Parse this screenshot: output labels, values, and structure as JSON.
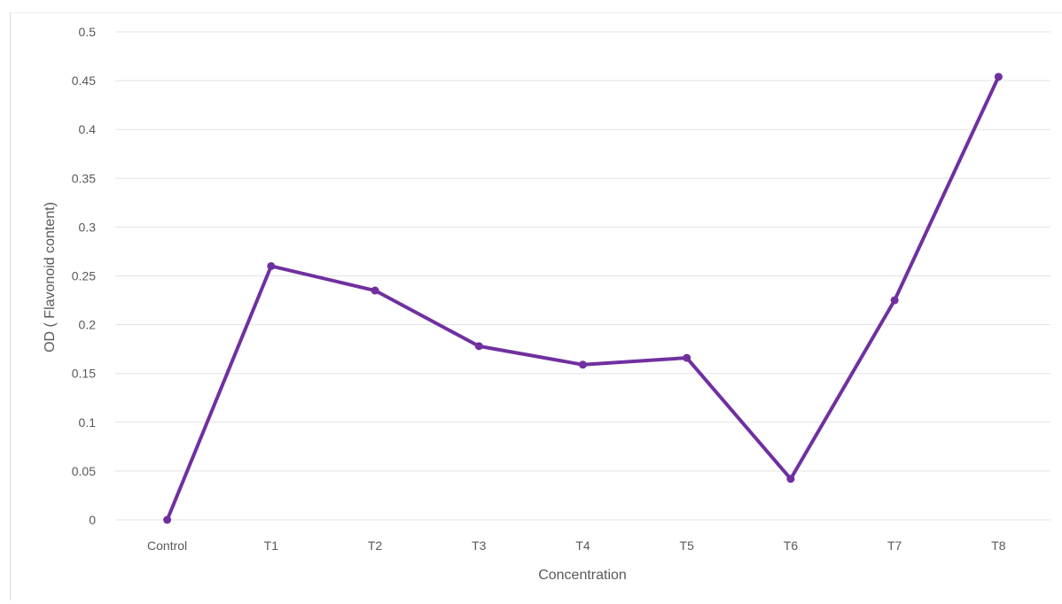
{
  "chart_data": {
    "type": "line",
    "categories": [
      "Control",
      "T1",
      "T2",
      "T3",
      "T4",
      "T5",
      "T6",
      "T7",
      "T8"
    ],
    "series": [
      {
        "values": [
          0,
          0.26,
          0.235,
          0.178,
          0.159,
          0.166,
          0.042,
          0.225,
          0.454
        ]
      }
    ],
    "title": "",
    "xlabel": "Concentration",
    "ylabel": "OD  ( Flavonoid content)",
    "ylim": [
      0,
      0.5
    ],
    "yticks": [
      "0",
      "0.05",
      "0.1",
      "0.15",
      "0.2",
      "0.25",
      "0.3",
      "0.35",
      "0.4",
      "0.45",
      "0.5"
    ],
    "grid": true,
    "legend": "none",
    "line_color": "#7030a0"
  }
}
